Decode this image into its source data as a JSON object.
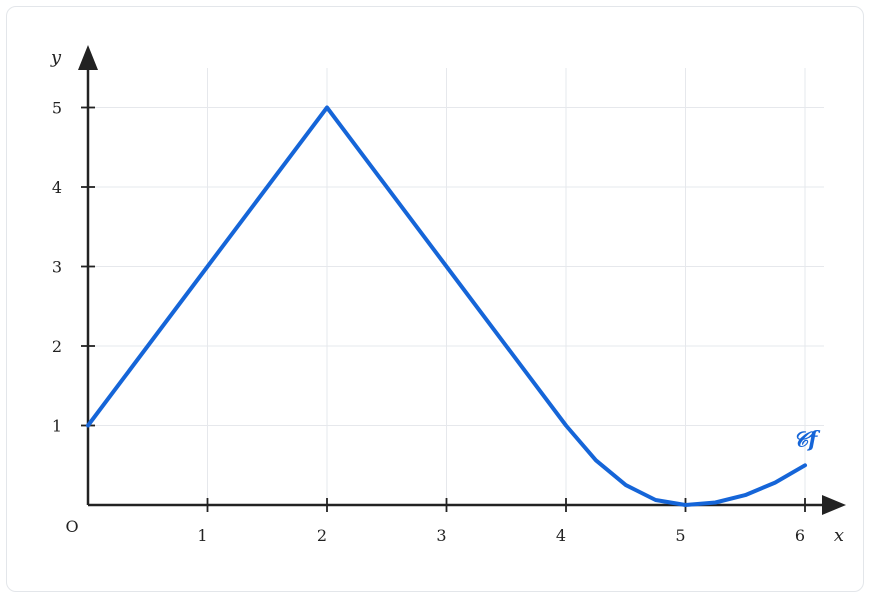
{
  "chart_data": {
    "type": "line",
    "title": "",
    "xlabel": "x",
    "ylabel": "y",
    "origin_label": "O",
    "xlim": [
      0,
      6.3
    ],
    "ylim": [
      0,
      5.4
    ],
    "x_ticks": [
      1,
      2,
      3,
      4,
      5,
      6
    ],
    "y_ticks": [
      1,
      2,
      3,
      4,
      5
    ],
    "grid": true,
    "series": [
      {
        "name": "𝒞f",
        "color": "#1565d8",
        "points": [
          [
            0,
            1
          ],
          [
            1,
            3
          ],
          [
            2,
            5
          ],
          [
            3,
            3
          ],
          [
            4,
            1
          ],
          [
            4.25,
            0.5625
          ],
          [
            4.5,
            0.25
          ],
          [
            4.75,
            0.0625
          ],
          [
            5,
            0
          ],
          [
            5.25,
            0.03125
          ],
          [
            5.5,
            0.125
          ],
          [
            5.75,
            0.28125
          ],
          [
            6,
            0.5
          ]
        ]
      }
    ]
  }
}
